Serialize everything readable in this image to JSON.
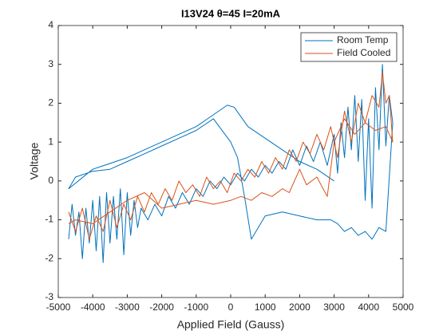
{
  "chart_data": {
    "type": "line",
    "title": "I13V24 θ=45 I=20mA",
    "xlabel": "Applied Field (Gauss)",
    "ylabel": "Voltage",
    "xlim": [
      -5000,
      5000
    ],
    "xticks": [
      -5000,
      -4000,
      -3000,
      -2000,
      -1000,
      0,
      1000,
      2000,
      3000,
      4000,
      5000
    ],
    "ylim": [
      -3,
      4
    ],
    "yticks": [
      -3,
      -2,
      -1,
      0,
      1,
      2,
      3,
      4
    ],
    "legend": "northeast",
    "series": [
      {
        "name": "Room Temp",
        "color": "#0072bd",
        "x": [
          -4700,
          -4600,
          -4500,
          -4400,
          -4300,
          -4200,
          -4100,
          -4000,
          -3900,
          -3800,
          -3700,
          -3600,
          -3500,
          -3400,
          -3300,
          -3200,
          -3100,
          -3000,
          -2900,
          -2800,
          -2700,
          -2600,
          -2400,
          -2200,
          -2000,
          -1800,
          -1600,
          -1400,
          -1200,
          -1000,
          -800,
          -600,
          -400,
          -200,
          0,
          200,
          400,
          600,
          800,
          1000,
          1200,
          1400,
          1600,
          1800,
          2000,
          2200,
          2400,
          2600,
          2800,
          3000,
          3100,
          3200,
          3300,
          3400,
          3500,
          3600,
          3700,
          3800,
          3900,
          4000,
          4100,
          4200,
          4300,
          4400,
          4500,
          4600,
          4700,
          4500,
          4300,
          4100,
          3900,
          3700,
          3500,
          3300,
          3100,
          2900,
          2500,
          2000,
          1500,
          1000,
          600,
          400,
          200,
          0,
          -500,
          -1000,
          -1500,
          -2000,
          -2500,
          -3000,
          -3500,
          -4000,
          -4500,
          -4700,
          -4000,
          -3000,
          -2000,
          -1000,
          -100,
          100,
          500,
          1000,
          1500,
          2000,
          2500,
          3000
        ],
        "values": [
          -1.5,
          -0.6,
          -1.4,
          -0.8,
          -2.0,
          -0.7,
          -1.6,
          -0.5,
          -1.8,
          -0.4,
          -2.1,
          -0.3,
          -1.6,
          -0.4,
          -1.5,
          -0.2,
          -1.9,
          -0.3,
          -1.4,
          -0.5,
          -1.2,
          -0.7,
          -1.0,
          -0.6,
          -0.9,
          -0.4,
          -0.7,
          -0.3,
          -0.6,
          -0.2,
          -0.4,
          0.0,
          -0.2,
          0.1,
          -0.1,
          0.2,
          0.0,
          0.3,
          0.1,
          0.4,
          0.2,
          0.5,
          0.3,
          0.8,
          0.4,
          0.9,
          0.5,
          1.0,
          0.4,
          1.2,
          0.2,
          1.5,
          0.6,
          1.9,
          0.8,
          2.2,
          0.5,
          2.1,
          -0.5,
          1.6,
          -0.7,
          2.4,
          0.8,
          3.0,
          0.9,
          2.2,
          1.5,
          -1.3,
          -1.2,
          -1.5,
          -1.3,
          -1.4,
          -1.2,
          -1.3,
          -1.1,
          -1.0,
          -1.0,
          -0.9,
          -0.8,
          -0.9,
          -1.5,
          -0.4,
          0.6,
          1.0,
          1.6,
          1.3,
          1.1,
          0.9,
          0.7,
          0.5,
          0.3,
          0.25,
          0.1,
          -0.2,
          0.3,
          0.6,
          1.0,
          1.4,
          1.95,
          1.9,
          1.4,
          1.1,
          0.8,
          0.5,
          0.3,
          0.0
        ]
      },
      {
        "name": "Field Cooled",
        "color": "#d95319",
        "x": [
          -4700,
          -4500,
          -4300,
          -4100,
          -3900,
          -3700,
          -3500,
          -3300,
          -3100,
          -2900,
          -2700,
          -2500,
          -2300,
          -2100,
          -1900,
          -1700,
          -1500,
          -1300,
          -1100,
          -900,
          -700,
          -500,
          -300,
          -100,
          100,
          300,
          500,
          700,
          900,
          1100,
          1300,
          1500,
          1700,
          1900,
          2100,
          2300,
          2500,
          2700,
          2900,
          3100,
          3300,
          3500,
          3700,
          3900,
          4100,
          4300,
          4400,
          4500,
          4600,
          4700,
          4500,
          4200,
          3900,
          3600,
          3300,
          3000,
          2800,
          2500,
          2200,
          2000,
          1700,
          1500,
          1200,
          900,
          600,
          300,
          0,
          -500,
          -1000,
          -1500,
          -2000,
          -2500,
          -3000,
          -3500,
          -4000,
          -4500,
          -4700
        ],
        "values": [
          -0.8,
          -1.3,
          -0.7,
          -1.5,
          -0.9,
          -1.3,
          -0.5,
          -1.2,
          -0.6,
          -1.0,
          -0.4,
          -0.8,
          -0.3,
          -0.6,
          -0.2,
          -0.5,
          0.0,
          -0.3,
          -0.1,
          -0.4,
          0.1,
          -0.2,
          0.0,
          -0.3,
          0.2,
          0.0,
          0.3,
          0.1,
          0.5,
          0.2,
          0.6,
          0.3,
          0.8,
          0.5,
          1.0,
          0.7,
          1.2,
          0.8,
          1.4,
          0.6,
          1.8,
          1.0,
          2.0,
          1.5,
          2.2,
          1.9,
          2.8,
          2.0,
          2.2,
          1.0,
          1.4,
          1.3,
          1.5,
          1.2,
          1.6,
          1.0,
          -0.4,
          0.1,
          -0.1,
          0.3,
          -0.3,
          -0.2,
          -0.4,
          -0.3,
          -0.5,
          -0.4,
          -0.5,
          -0.6,
          -0.5,
          -0.6,
          -0.7,
          -0.3,
          -0.5,
          -0.8,
          -1.1,
          -1.0,
          -1.1
        ]
      }
    ]
  }
}
